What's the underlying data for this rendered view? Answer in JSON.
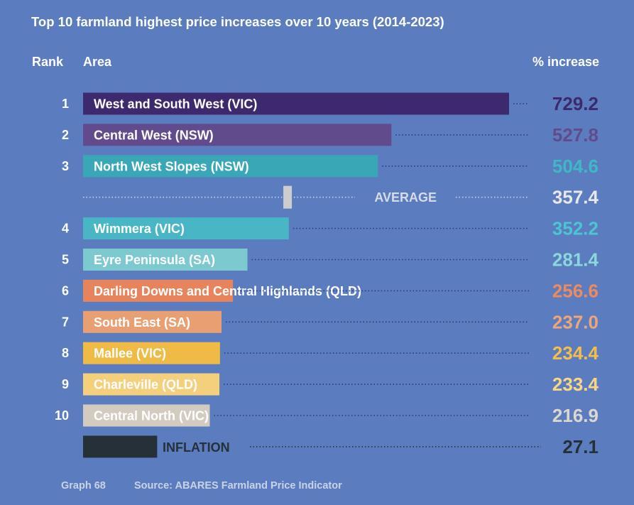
{
  "chart_data": {
    "type": "bar",
    "title": "Top 10 farmland highest price increases over 10 years (2014-2023)",
    "col_rank": "Rank",
    "col_area": "Area",
    "col_value": "% increase",
    "rows": [
      {
        "rank": "1",
        "label": "West and South West (VIC)",
        "value": 729.2,
        "display": "729.2",
        "bar_color": "#3d2a6e",
        "value_color": "#3d2a6e"
      },
      {
        "rank": "2",
        "label": "Central West (NSW)",
        "value": 527.8,
        "display": "527.8",
        "bar_color": "#614b8d",
        "value_color": "#614b8d"
      },
      {
        "rank": "3",
        "label": "North West Slopes (NSW)",
        "value": 504.6,
        "display": "504.6",
        "bar_color": "#3aa7b6",
        "value_color": "#3fb8c6"
      },
      {
        "rank": "",
        "label": "AVERAGE",
        "value": 357.4,
        "display": "357.4",
        "marker": true,
        "bar_color": "#cdcdd0",
        "value_color": "#e8e8ea"
      },
      {
        "rank": "4",
        "label": "Wimmera (VIC)",
        "value": 352.2,
        "display": "352.2",
        "bar_color": "#48b6c4",
        "value_color": "#4dc4d2"
      },
      {
        "rank": "5",
        "label": "Eyre Peninsula (SA)",
        "value": 281.4,
        "display": "281.4",
        "bar_color": "#7cc9cf",
        "value_color": "#8bd7dc"
      },
      {
        "rank": "6",
        "label": "Darling Downs and Central Highlands (QLD)",
        "value": 256.6,
        "display": "256.6",
        "bar_color": "#e8845c",
        "value_color": "#ee8a5f"
      },
      {
        "rank": "7",
        "label": "South East (SA)",
        "value": 237.0,
        "display": "237.0",
        "bar_color": "#e8a072",
        "value_color": "#eea57a"
      },
      {
        "rank": "8",
        "label": "Mallee (VIC)",
        "value": 234.4,
        "display": "234.4",
        "bar_color": "#efbb45",
        "value_color": "#f3be49"
      },
      {
        "rank": "9",
        "label": "Charleville (QLD)",
        "value": 233.4,
        "display": "233.4",
        "bar_color": "#f5d07c",
        "value_color": "#f8d685"
      },
      {
        "rank": "10",
        "label": "Central North (VIC)",
        "value": 216.9,
        "display": "216.9",
        "bar_color": "#d4cbc0",
        "value_color": "#ddd6ce"
      },
      {
        "rank": "",
        "label": "INFLATION",
        "value": 27.1,
        "display": "27.1",
        "inflation": true,
        "bar_color": "#263038",
        "value_color": "#263038"
      }
    ],
    "footer_graph": "Graph 68",
    "footer_source": "Source: ABARES Farmland Price Indicator"
  }
}
